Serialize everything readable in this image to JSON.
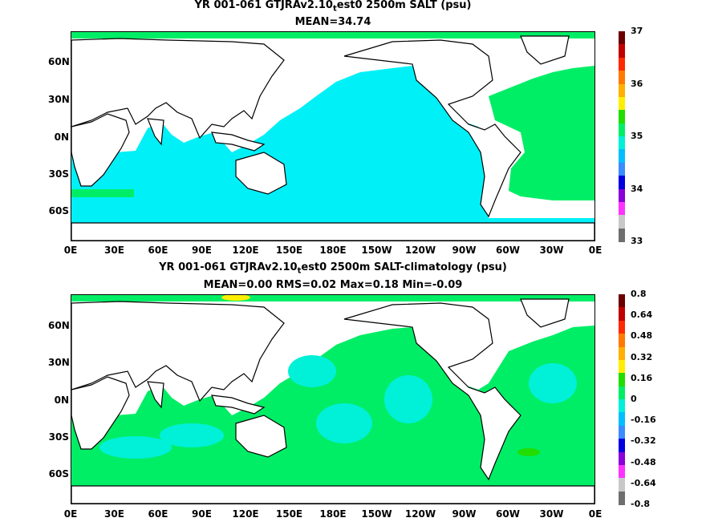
{
  "panel_top": {
    "title_prefix": "YR 001-061 GTJRAv2.10",
    "title_sub": "t",
    "title_suffix": "est0 2500m SALT (psu)",
    "stats": "MEAN=34.74",
    "colorbar": {
      "labels": [
        "37",
        "36",
        "35",
        "34",
        "33"
      ],
      "colors": [
        "#6b0000",
        "#c00000",
        "#ff2a00",
        "#ff7a00",
        "#ffb000",
        "#ffee00",
        "#22dd00",
        "#00ee66",
        "#00f0d8",
        "#00bfff",
        "#3a8cff",
        "#0000e0",
        "#8a00d8",
        "#ff33ff",
        "#c8c8c8",
        "#6e6e6e"
      ]
    }
  },
  "panel_bottom": {
    "title_prefix": "YR 001-061 GTJRAv2.10",
    "title_sub": "t",
    "title_suffix": "est0 2500m SALT-climatology (psu)",
    "stats": "MEAN=0.00   RMS=0.02   Max=0.18   Min=-0.09",
    "colorbar": {
      "labels": [
        "0.8",
        "0.64",
        "0.48",
        "0.32",
        "0.16",
        "0",
        "-0.16",
        "-0.32",
        "-0.48",
        "-0.64",
        "-0.8"
      ],
      "colors": [
        "#6b0000",
        "#c00000",
        "#ff2a00",
        "#ff7a00",
        "#ffb000",
        "#ffee00",
        "#22dd00",
        "#00ee66",
        "#00f0d8",
        "#00bfff",
        "#3a8cff",
        "#0000e0",
        "#8a00d8",
        "#ff33ff",
        "#c8c8c8",
        "#6e6e6e"
      ]
    }
  },
  "lat_labels": [
    "60N",
    "30N",
    "0N",
    "30S",
    "60S"
  ],
  "lon_labels": [
    "0E",
    "30E",
    "60E",
    "90E",
    "120E",
    "150E",
    "180E",
    "150W",
    "120W",
    "90W",
    "60W",
    "30W",
    "0E"
  ],
  "colors": {
    "salt_main": "#00f0f8",
    "salt_high": "#00ee66",
    "anom_zero": "#00ee66",
    "anom_pos": "#22dd00",
    "anom_neg": "#00f0d8",
    "land": "#ffffff"
  }
}
